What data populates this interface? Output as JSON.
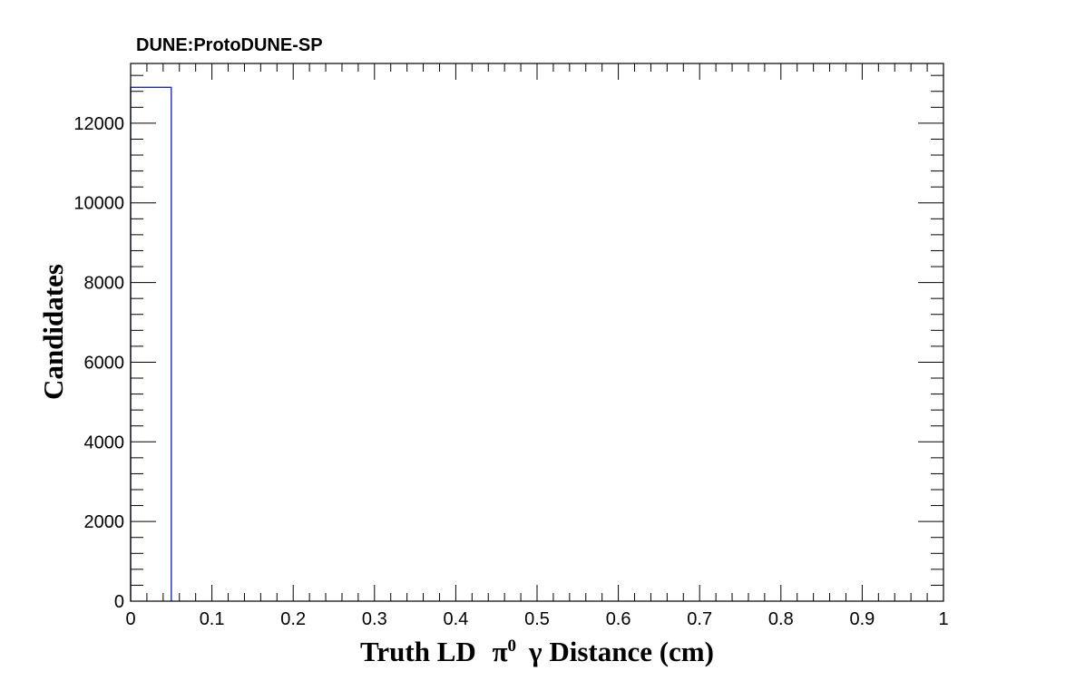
{
  "chart_data": {
    "type": "bar",
    "title": "DUNE:ProtoDUNE-SP",
    "xlabel": {
      "prefix": "Truth LD ",
      "pi": "π",
      "pi_superscript": "0",
      "gamma": "γ",
      "suffix": " Distance (cm)"
    },
    "ylabel": "Candidates",
    "xlim": [
      0,
      1
    ],
    "ylim": [
      0,
      13500
    ],
    "x_ticks": [
      "0",
      "0.1",
      "0.2",
      "0.3",
      "0.4",
      "0.5",
      "0.6",
      "0.7",
      "0.8",
      "0.9",
      "1"
    ],
    "x_tick_values": [
      0,
      0.1,
      0.2,
      0.3,
      0.4,
      0.5,
      0.6,
      0.7,
      0.8,
      0.9,
      1.0
    ],
    "y_ticks": [
      "0",
      "2000",
      "4000",
      "6000",
      "8000",
      "10000",
      "12000"
    ],
    "y_tick_values": [
      0,
      2000,
      4000,
      6000,
      8000,
      10000,
      12000
    ],
    "bins": [
      {
        "low": 0.0,
        "high": 0.05,
        "value": 12900
      }
    ],
    "line_color": "#1f2fa8",
    "grid": false,
    "legend": "none"
  }
}
